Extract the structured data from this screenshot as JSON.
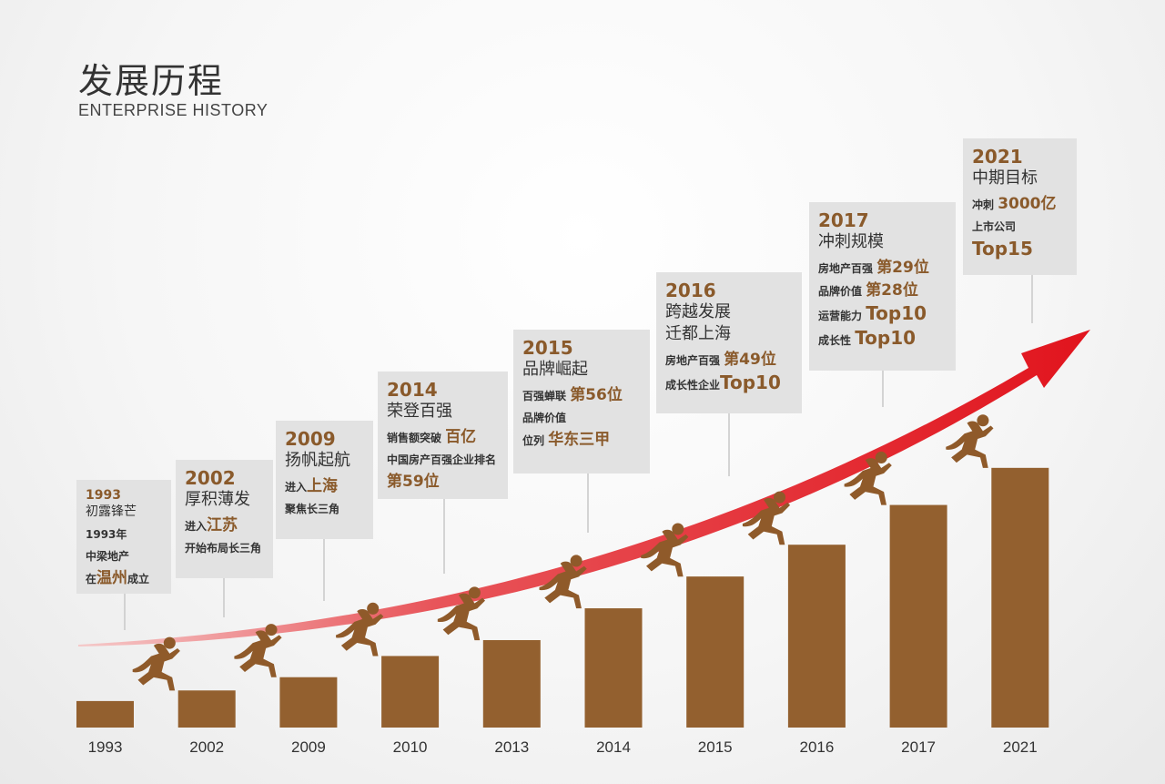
{
  "header": {
    "title": "发展历程",
    "subtitle": "ENTERPRISE HISTORY"
  },
  "colors": {
    "bar": "#93602f",
    "highlight": "#8a5a2b",
    "arrow": "#e1141d",
    "card_bg": "#e2e2e2"
  },
  "icons": {
    "runner": "running-man-icon",
    "arrow": "growth-arrow-icon"
  },
  "chart_data": {
    "type": "bar",
    "categories": [
      "1993",
      "2002",
      "2009",
      "2010",
      "2013",
      "2014",
      "2015",
      "2016",
      "2017",
      "2021"
    ],
    "values": [
      1.0,
      1.4,
      1.9,
      2.7,
      3.3,
      4.5,
      5.7,
      6.9,
      8.4,
      9.8
    ],
    "title": "",
    "xlabel": "",
    "ylabel": "",
    "ylim": [
      0,
      10
    ],
    "grid": false,
    "legend": "none"
  },
  "milestones": [
    {
      "year": "1993",
      "heading": "初露锋芒",
      "lines": [
        [
          {
            "t": "1993年",
            "c": "n"
          }
        ],
        [
          {
            "t": "中梁地产",
            "c": "n"
          }
        ],
        [
          {
            "t": "在",
            "c": "n"
          },
          {
            "t": "温州",
            "c": "h"
          },
          {
            "t": "成立",
            "c": "n"
          }
        ]
      ]
    },
    {
      "year": "2002",
      "heading": "厚积薄发",
      "lines": [
        [
          {
            "t": "进入",
            "c": "n"
          },
          {
            "t": "江苏",
            "c": "h"
          }
        ],
        [
          {
            "t": "开始布局长三角",
            "c": "n"
          }
        ]
      ]
    },
    {
      "year": "2009",
      "heading": "扬帆起航",
      "lines": [
        [
          {
            "t": "进入",
            "c": "n"
          },
          {
            "t": "上海",
            "c": "h"
          }
        ],
        [
          {
            "t": "聚焦长三角",
            "c": "n"
          }
        ]
      ]
    },
    {
      "year": "2014",
      "heading": "荣登百强",
      "lines": [
        [
          {
            "t": "销售额突破 ",
            "c": "n"
          },
          {
            "t": "百亿",
            "c": "h"
          }
        ],
        [
          {
            "t": "中国房产百强企业排名",
            "c": "n"
          }
        ],
        [
          {
            "t": "第59位",
            "c": "h"
          }
        ]
      ]
    },
    {
      "year": "2015",
      "heading": "品牌崛起",
      "lines": [
        [
          {
            "t": "百强蝉联 ",
            "c": "n"
          },
          {
            "t": "第56位",
            "c": "h"
          }
        ],
        [
          {
            "t": "品牌价值",
            "c": "n"
          }
        ],
        [
          {
            "t": "位列 ",
            "c": "n"
          },
          {
            "t": "华东三甲",
            "c": "h"
          }
        ]
      ]
    },
    {
      "year": "2016",
      "heading": "跨越发展",
      "heading2": "迁都上海",
      "lines": [
        [
          {
            "t": "房地产百强 ",
            "c": "n"
          },
          {
            "t": "第49位",
            "c": "h"
          }
        ],
        [
          {
            "t": "成长性企业",
            "c": "n"
          },
          {
            "t": "Top10",
            "c": "b"
          }
        ]
      ]
    },
    {
      "year": "2017",
      "heading": "冲刺规模",
      "lines": [
        [
          {
            "t": "房地产百强 ",
            "c": "n"
          },
          {
            "t": "第29位",
            "c": "h"
          }
        ],
        [
          {
            "t": "品牌价值  ",
            "c": "n"
          },
          {
            "t": "第28位",
            "c": "h"
          }
        ],
        [
          {
            "t": "运营能力 ",
            "c": "n"
          },
          {
            "t": "Top10",
            "c": "b"
          }
        ],
        [
          {
            "t": "成长性  ",
            "c": "n"
          },
          {
            "t": "Top10",
            "c": "b"
          }
        ]
      ]
    },
    {
      "year": "2021",
      "heading": "中期目标",
      "lines": [
        [
          {
            "t": "冲刺  ",
            "c": "n"
          },
          {
            "t": "3000",
            "c": "h"
          },
          {
            "t": "亿",
            "c": "h"
          }
        ],
        [
          {
            "t": "上市公司",
            "c": "n"
          }
        ],
        [
          {
            "t": "Top15",
            "c": "b"
          }
        ]
      ]
    }
  ]
}
